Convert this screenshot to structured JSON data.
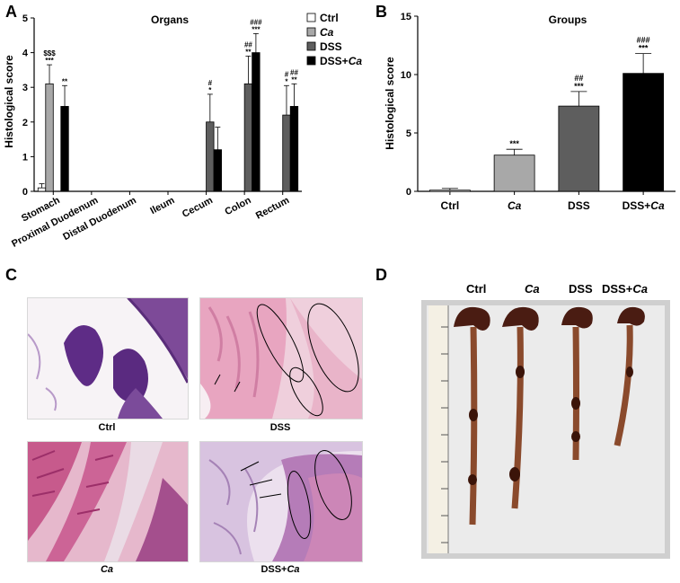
{
  "panels": {
    "a": "A",
    "b": "B",
    "c": "C",
    "d": "D"
  },
  "chart_data": [
    {
      "type": "bar",
      "title": "Organs",
      "ylabel": "Histological score",
      "ylim": [
        0,
        5
      ],
      "yticks": [
        "0",
        "1",
        "2",
        "3",
        "4",
        "5"
      ],
      "categories": [
        "Stomach",
        "Proximal Duodenum",
        "Distal Duodenum",
        "Ileum",
        "Cecum",
        "Colon",
        "Rectum"
      ],
      "legend_position": "top-right",
      "series": [
        {
          "name": "Ctrl",
          "legend_main": "Ctrl",
          "legend_italic": "",
          "color": "#ffffff",
          "values": [
            0.1,
            0,
            0,
            0,
            0,
            0,
            0
          ],
          "errors": [
            0.12,
            0,
            0,
            0,
            0,
            0,
            0
          ],
          "sig1": [
            "",
            "",
            "",
            "",
            "",
            "",
            ""
          ],
          "sig2": [
            "",
            "",
            "",
            "",
            "",
            "",
            ""
          ]
        },
        {
          "name": "Ca",
          "legend_main": "",
          "legend_italic": "Ca",
          "color": "#a8a8a8",
          "values": [
            3.1,
            0,
            0,
            0,
            0,
            0,
            0
          ],
          "errors": [
            0.55,
            0,
            0,
            0,
            0,
            0,
            0
          ],
          "sig1": [
            "***",
            "",
            "",
            "",
            "",
            "",
            ""
          ],
          "sig2": [
            "$$$",
            "",
            "",
            "",
            "",
            "",
            ""
          ]
        },
        {
          "name": "DSS",
          "legend_main": "DSS",
          "legend_italic": "",
          "color": "#5e5e5e",
          "values": [
            0,
            0,
            0,
            0,
            2.0,
            3.1,
            2.2
          ],
          "errors": [
            0,
            0,
            0,
            0,
            0.8,
            0.8,
            0.85
          ],
          "sig1": [
            "",
            "",
            "",
            "",
            "*",
            "**",
            "*"
          ],
          "sig2": [
            "",
            "",
            "",
            "",
            "#",
            "##",
            "#"
          ]
        },
        {
          "name": "DSS+Ca",
          "legend_main": "DSS+",
          "legend_italic": "Ca",
          "color": "#000000",
          "values": [
            2.45,
            0,
            0,
            0,
            1.2,
            4.0,
            2.45
          ],
          "errors": [
            0.6,
            0,
            0,
            0,
            0.65,
            0.55,
            0.65
          ],
          "sig1": [
            "**",
            "",
            "",
            "",
            "",
            "***",
            "**"
          ],
          "sig2": [
            "",
            "",
            "",
            "",
            "",
            "###",
            "##"
          ]
        }
      ]
    },
    {
      "type": "bar",
      "title": "Groups",
      "ylabel": "Histological score",
      "ylim": [
        0,
        15
      ],
      "yticks": [
        "0",
        "5",
        "10",
        "15"
      ],
      "categories": [
        {
          "main": "Ctrl",
          "italic": ""
        },
        {
          "main": "",
          "italic": "Ca"
        },
        {
          "main": "DSS",
          "italic": ""
        },
        {
          "main": "DSS+",
          "italic": "Ca"
        }
      ],
      "series": [
        {
          "values": [
            0.1,
            3.1,
            7.3,
            10.1
          ],
          "errors": [
            0.15,
            0.5,
            1.25,
            1.7
          ],
          "colors": [
            "#ffffff",
            "#a8a8a8",
            "#5e5e5e",
            "#000000"
          ],
          "sig1": [
            "",
            "***",
            "***",
            "***"
          ],
          "sig2": [
            "",
            "",
            "##",
            "###"
          ]
        }
      ]
    }
  ],
  "histology": {
    "ctrl": {
      "label": "Ctrl"
    },
    "dss": {
      "label": "DSS"
    },
    "ca": {
      "label": "Ca"
    },
    "dss_ca": {
      "label_main": "DSS+",
      "label_italic": "Ca"
    }
  },
  "photo": {
    "labels": [
      {
        "main": "Ctrl",
        "italic": ""
      },
      {
        "main": "",
        "italic": "Ca"
      },
      {
        "main": "DSS",
        "italic": ""
      },
      {
        "main": "DSS+",
        "italic": "Ca"
      }
    ]
  }
}
